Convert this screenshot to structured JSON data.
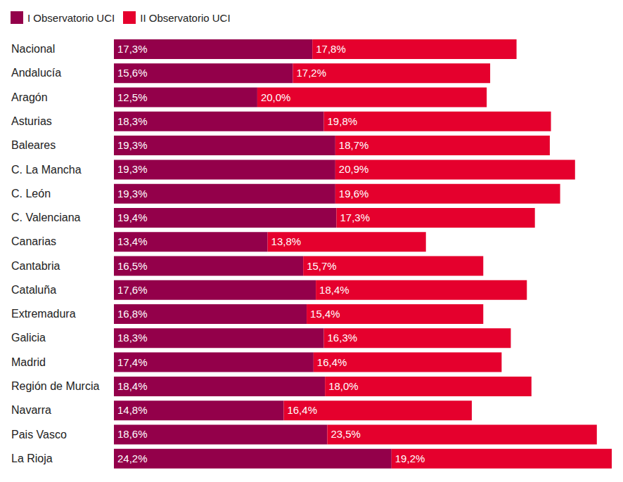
{
  "chart_data": {
    "type": "bar",
    "orientation": "horizontal",
    "stacked": true,
    "data_labels": true,
    "tick_labels": "y",
    "legend": "top-left",
    "xlim": [
      0,
      43.4
    ],
    "categories": [
      "Nacional",
      "Andalucía",
      "Aragón",
      "Asturias",
      "Baleares",
      "C. La Mancha",
      "C. León",
      "C. Valenciana",
      "Canarias",
      "Cantabria",
      "Cataluña",
      "Extremadura",
      "Galicia",
      "Madrid",
      "Región de Murcia",
      "Navarra",
      "Pais Vasco",
      "La Rioja"
    ],
    "series": [
      {
        "name": "I Observatorio UCI",
        "color": "#93004a",
        "values": [
          17.3,
          15.6,
          12.5,
          18.3,
          19.3,
          19.3,
          19.3,
          19.4,
          13.4,
          16.5,
          17.6,
          16.8,
          18.3,
          17.4,
          18.4,
          14.8,
          18.6,
          24.2
        ],
        "value_labels": [
          "17,3%",
          "15,6%",
          "12,5%",
          "18,3%",
          "19,3%",
          "19,3%",
          "19,3%",
          "19,4%",
          "13,4%",
          "16,5%",
          "17,6%",
          "16,8%",
          "18,3%",
          "17,4%",
          "18,4%",
          "14,8%",
          "18,6%",
          "24,2%"
        ]
      },
      {
        "name": "II Observatorio UCI",
        "color": "#e5002d",
        "values": [
          17.8,
          17.2,
          20.0,
          19.8,
          18.7,
          20.9,
          19.6,
          17.3,
          13.8,
          15.7,
          18.4,
          15.4,
          16.3,
          16.4,
          18.0,
          16.4,
          23.5,
          19.2
        ],
        "value_labels": [
          "17,8%",
          "17,2%",
          "20,0%",
          "19,8%",
          "18,7%",
          "20,9%",
          "19,6%",
          "17,3%",
          "13,8%",
          "15,7%",
          "18,4%",
          "15,4%",
          "16,3%",
          "16,4%",
          "18,0%",
          "16,4%",
          "23,5%",
          "19,2%"
        ]
      }
    ]
  }
}
